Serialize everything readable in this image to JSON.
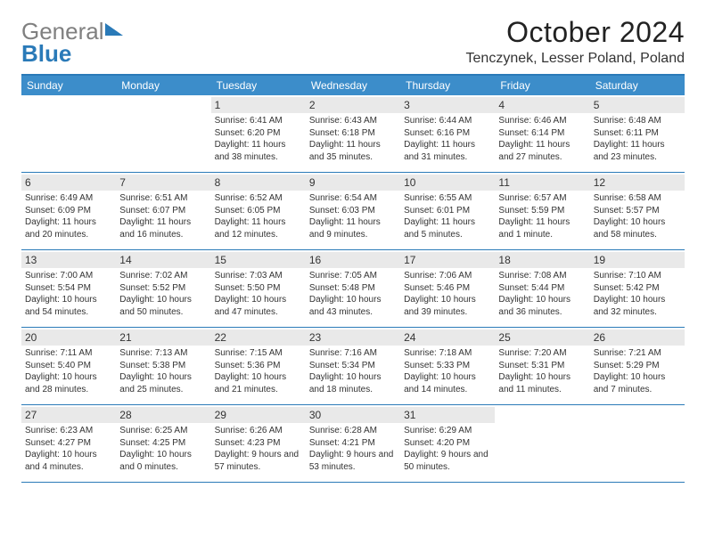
{
  "logo": {
    "word1": "General",
    "word2": "Blue"
  },
  "title": "October 2024",
  "location": "Tenczynek, Lesser Poland, Poland",
  "colors": {
    "accent": "#2a7ab8",
    "header_bg": "#3c8dca",
    "daynum_bg": "#e9e9e9",
    "logo_gray": "#808080"
  },
  "day_headers": [
    "Sunday",
    "Monday",
    "Tuesday",
    "Wednesday",
    "Thursday",
    "Friday",
    "Saturday"
  ],
  "weeks": [
    [
      {
        "blank": true
      },
      {
        "blank": true
      },
      {
        "n": "1",
        "sr": "6:41 AM",
        "ss": "6:20 PM",
        "dl": "11 hours and 38 minutes."
      },
      {
        "n": "2",
        "sr": "6:43 AM",
        "ss": "6:18 PM",
        "dl": "11 hours and 35 minutes."
      },
      {
        "n": "3",
        "sr": "6:44 AM",
        "ss": "6:16 PM",
        "dl": "11 hours and 31 minutes."
      },
      {
        "n": "4",
        "sr": "6:46 AM",
        "ss": "6:14 PM",
        "dl": "11 hours and 27 minutes."
      },
      {
        "n": "5",
        "sr": "6:48 AM",
        "ss": "6:11 PM",
        "dl": "11 hours and 23 minutes."
      }
    ],
    [
      {
        "n": "6",
        "sr": "6:49 AM",
        "ss": "6:09 PM",
        "dl": "11 hours and 20 minutes."
      },
      {
        "n": "7",
        "sr": "6:51 AM",
        "ss": "6:07 PM",
        "dl": "11 hours and 16 minutes."
      },
      {
        "n": "8",
        "sr": "6:52 AM",
        "ss": "6:05 PM",
        "dl": "11 hours and 12 minutes."
      },
      {
        "n": "9",
        "sr": "6:54 AM",
        "ss": "6:03 PM",
        "dl": "11 hours and 9 minutes."
      },
      {
        "n": "10",
        "sr": "6:55 AM",
        "ss": "6:01 PM",
        "dl": "11 hours and 5 minutes."
      },
      {
        "n": "11",
        "sr": "6:57 AM",
        "ss": "5:59 PM",
        "dl": "11 hours and 1 minute."
      },
      {
        "n": "12",
        "sr": "6:58 AM",
        "ss": "5:57 PM",
        "dl": "10 hours and 58 minutes."
      }
    ],
    [
      {
        "n": "13",
        "sr": "7:00 AM",
        "ss": "5:54 PM",
        "dl": "10 hours and 54 minutes."
      },
      {
        "n": "14",
        "sr": "7:02 AM",
        "ss": "5:52 PM",
        "dl": "10 hours and 50 minutes."
      },
      {
        "n": "15",
        "sr": "7:03 AM",
        "ss": "5:50 PM",
        "dl": "10 hours and 47 minutes."
      },
      {
        "n": "16",
        "sr": "7:05 AM",
        "ss": "5:48 PM",
        "dl": "10 hours and 43 minutes."
      },
      {
        "n": "17",
        "sr": "7:06 AM",
        "ss": "5:46 PM",
        "dl": "10 hours and 39 minutes."
      },
      {
        "n": "18",
        "sr": "7:08 AM",
        "ss": "5:44 PM",
        "dl": "10 hours and 36 minutes."
      },
      {
        "n": "19",
        "sr": "7:10 AM",
        "ss": "5:42 PM",
        "dl": "10 hours and 32 minutes."
      }
    ],
    [
      {
        "n": "20",
        "sr": "7:11 AM",
        "ss": "5:40 PM",
        "dl": "10 hours and 28 minutes."
      },
      {
        "n": "21",
        "sr": "7:13 AM",
        "ss": "5:38 PM",
        "dl": "10 hours and 25 minutes."
      },
      {
        "n": "22",
        "sr": "7:15 AM",
        "ss": "5:36 PM",
        "dl": "10 hours and 21 minutes."
      },
      {
        "n": "23",
        "sr": "7:16 AM",
        "ss": "5:34 PM",
        "dl": "10 hours and 18 minutes."
      },
      {
        "n": "24",
        "sr": "7:18 AM",
        "ss": "5:33 PM",
        "dl": "10 hours and 14 minutes."
      },
      {
        "n": "25",
        "sr": "7:20 AM",
        "ss": "5:31 PM",
        "dl": "10 hours and 11 minutes."
      },
      {
        "n": "26",
        "sr": "7:21 AM",
        "ss": "5:29 PM",
        "dl": "10 hours and 7 minutes."
      }
    ],
    [
      {
        "n": "27",
        "sr": "6:23 AM",
        "ss": "4:27 PM",
        "dl": "10 hours and 4 minutes."
      },
      {
        "n": "28",
        "sr": "6:25 AM",
        "ss": "4:25 PM",
        "dl": "10 hours and 0 minutes."
      },
      {
        "n": "29",
        "sr": "6:26 AM",
        "ss": "4:23 PM",
        "dl": "9 hours and 57 minutes."
      },
      {
        "n": "30",
        "sr": "6:28 AM",
        "ss": "4:21 PM",
        "dl": "9 hours and 53 minutes."
      },
      {
        "n": "31",
        "sr": "6:29 AM",
        "ss": "4:20 PM",
        "dl": "9 hours and 50 minutes."
      },
      {
        "blank": true
      },
      {
        "blank": true
      }
    ]
  ],
  "labels": {
    "sunrise": "Sunrise: ",
    "sunset": "Sunset: ",
    "daylight": "Daylight: "
  }
}
